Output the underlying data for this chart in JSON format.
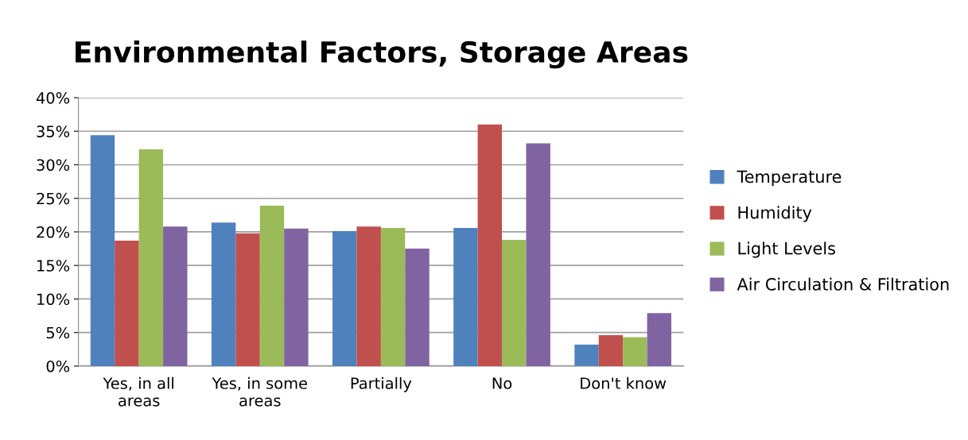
{
  "chart_data": {
    "type": "bar",
    "title": "Environmental Factors, Storage Areas",
    "categories": [
      "Yes, in all\nareas",
      "Yes, in some\nareas",
      "Partially",
      "No",
      "Don't know"
    ],
    "series": [
      {
        "name": "Temperature",
        "color": "#4f81bd",
        "values": [
          34.4,
          21.4,
          20.1,
          20.6,
          3.2
        ]
      },
      {
        "name": "Humidity",
        "color": "#c0504d",
        "values": [
          18.7,
          19.8,
          20.8,
          36.0,
          4.6
        ]
      },
      {
        "name": "Light Levels",
        "color": "#9bbb59",
        "values": [
          32.3,
          23.9,
          20.6,
          18.8,
          4.3
        ]
      },
      {
        "name": "Air Circulation & Filtration",
        "color": "#8064a2",
        "values": [
          20.8,
          20.5,
          17.5,
          33.2,
          7.9
        ]
      }
    ],
    "ylim": [
      0,
      40
    ],
    "yticks": [
      {
        "value": 0,
        "label": "0%"
      },
      {
        "value": 5,
        "label": "5%"
      },
      {
        "value": 10,
        "label": "10%"
      },
      {
        "value": 15,
        "label": "15%"
      },
      {
        "value": 20,
        "label": "20%"
      },
      {
        "value": 25,
        "label": "25%"
      },
      {
        "value": 30,
        "label": "30%"
      },
      {
        "value": 35,
        "label": "35%"
      },
      {
        "value": 40,
        "label": "40%"
      }
    ],
    "grid": "y",
    "legend": "right"
  }
}
